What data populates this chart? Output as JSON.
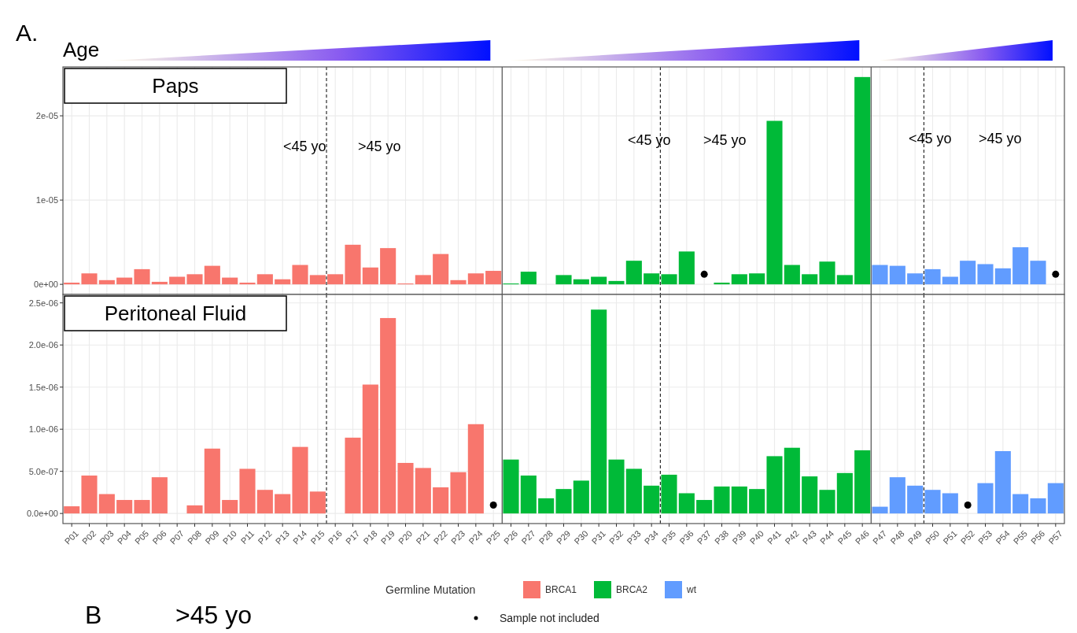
{
  "chart_data": [
    {
      "type": "bar",
      "title": "Paps",
      "annotations": [
        "A.",
        "Age",
        "<45 yo",
        ">45 yo",
        "<45 yo",
        ">45 yo",
        "<45 yo",
        ">45 yo"
      ],
      "categories": [
        "P01",
        "P02",
        "P03",
        "P04",
        "P05",
        "P06",
        "P07",
        "P08",
        "P09",
        "P10",
        "P11",
        "P12",
        "P13",
        "P14",
        "P15",
        "P16",
        "P17",
        "P18",
        "P19",
        "P20",
        "P21",
        "P22",
        "P23",
        "P24",
        "P25",
        "P26",
        "P27",
        "P28",
        "P29",
        "P30",
        "P31",
        "P32",
        "P33",
        "P34",
        "P35",
        "P36",
        "P37",
        "P38",
        "P39",
        "P40",
        "P41",
        "P42",
        "P43",
        "P44",
        "P45",
        "P46",
        "P47",
        "P48",
        "P49",
        "P50",
        "P51",
        "P52",
        "P53",
        "P54",
        "P55",
        "P56",
        "P57"
      ],
      "series": [
        {
          "color": "#f8766d",
          "values": [
            2e-07,
            1.3e-06,
            5e-07,
            8e-07,
            1.8e-06,
            3e-07,
            9e-07,
            1.2e-06,
            2.2e-06,
            8e-07,
            2e-07,
            1.2e-06,
            6e-07,
            2.3e-06,
            1.1e-06,
            1.2e-06,
            4.7e-06,
            2e-06,
            4.3e-06,
            1e-07,
            1.1e-06,
            3.6e-06,
            5e-07,
            1.3e-06,
            1.6e-06,
            null,
            null,
            null,
            null,
            null,
            null,
            null,
            null,
            null,
            null,
            null,
            null,
            null,
            null,
            null,
            null,
            null,
            null,
            null,
            null,
            null,
            null,
            null,
            null,
            null,
            null,
            null,
            null,
            null,
            null,
            null,
            null
          ]
        },
        {
          "color": "#00ba38",
          "values": [
            null,
            null,
            null,
            null,
            null,
            null,
            null,
            null,
            null,
            null,
            null,
            null,
            null,
            null,
            null,
            null,
            null,
            null,
            null,
            null,
            null,
            null,
            null,
            null,
            null,
            1e-07,
            1.5e-06,
            null,
            1.1e-06,
            6e-07,
            9e-07,
            4e-07,
            2.8e-06,
            1.3e-06,
            1.2e-06,
            3.9e-06,
            null,
            2e-07,
            1.2e-06,
            1.3e-06,
            1.94e-05,
            2.3e-06,
            1.2e-06,
            2.7e-06,
            1.1e-06,
            2.46e-05,
            null,
            null,
            null,
            null,
            null,
            null,
            null,
            null,
            null,
            null,
            null
          ]
        },
        {
          "color": "#619cff",
          "values": [
            null,
            null,
            null,
            null,
            null,
            null,
            null,
            null,
            null,
            null,
            null,
            null,
            null,
            null,
            null,
            null,
            null,
            null,
            null,
            null,
            null,
            null,
            null,
            null,
            null,
            null,
            null,
            null,
            null,
            null,
            null,
            null,
            null,
            null,
            null,
            null,
            null,
            null,
            null,
            null,
            null,
            null,
            null,
            null,
            null,
            null,
            2.3e-06,
            2.2e-06,
            1.3e-06,
            1.8e-06,
            9e-07,
            2.8e-06,
            2.4e-06,
            1.9e-06,
            4.4e-06,
            2.8e-06,
            null
          ]
        },
        {
          "type": "scatter",
          "marker": "circle",
          "color": "#000000",
          "x": [
            "P37",
            "P57"
          ],
          "values": [
            1.2e-06,
            1.2e-06
          ]
        }
      ],
      "ylim": [
        -1.2e-06,
        2.58e-05
      ],
      "yticks": [
        {
          "value": 0,
          "label": "0e+00"
        },
        {
          "value": 1e-05,
          "label": "1e-05"
        },
        {
          "value": 2e-05,
          "label": "2e-05"
        }
      ],
      "grid": true,
      "tick_labels": "y"
    },
    {
      "type": "bar",
      "title": "Peritoneal Fluid",
      "annotations": [
        "B",
        ">45 yo"
      ],
      "categories": [
        "P01",
        "P02",
        "P03",
        "P04",
        "P05",
        "P06",
        "P07",
        "P08",
        "P09",
        "P10",
        "P11",
        "P12",
        "P13",
        "P14",
        "P15",
        "P16",
        "P17",
        "P18",
        "P19",
        "P20",
        "P21",
        "P22",
        "P23",
        "P24",
        "P25",
        "P26",
        "P27",
        "P28",
        "P29",
        "P30",
        "P31",
        "P32",
        "P33",
        "P34",
        "P35",
        "P36",
        "P37",
        "P38",
        "P39",
        "P40",
        "P41",
        "P42",
        "P43",
        "P44",
        "P45",
        "P46",
        "P47",
        "P48",
        "P49",
        "P50",
        "P51",
        "P52",
        "P53",
        "P54",
        "P55",
        "P56",
        "P57"
      ],
      "series": [
        {
          "name": "BRCA1",
          "color": "#f8766d",
          "values": [
            8.5e-08,
            4.5e-07,
            2.3e-07,
            1.6e-07,
            1.6e-07,
            4.3e-07,
            null,
            9.6e-08,
            7.7e-07,
            1.6e-07,
            5.3e-07,
            2.8e-07,
            2.3e-07,
            7.9e-07,
            2.6e-07,
            null,
            9e-07,
            1.53e-06,
            2.32e-06,
            6e-07,
            5.4e-07,
            3.1e-07,
            4.9e-07,
            1.06e-06,
            null,
            null,
            null,
            null,
            null,
            null,
            null,
            null,
            null,
            null,
            null,
            null,
            null,
            null,
            null,
            null,
            null,
            null,
            null,
            null,
            null,
            null,
            null,
            null,
            null,
            null,
            null,
            null,
            null,
            null,
            null,
            null,
            null
          ]
        },
        {
          "name": "BRCA2",
          "color": "#00ba38",
          "values": [
            null,
            null,
            null,
            null,
            null,
            null,
            null,
            null,
            null,
            null,
            null,
            null,
            null,
            null,
            null,
            null,
            null,
            null,
            null,
            null,
            null,
            null,
            null,
            null,
            null,
            6.4e-07,
            4.5e-07,
            1.8e-07,
            2.9e-07,
            3.9e-07,
            2.42e-06,
            6.4e-07,
            5.3e-07,
            3.3e-07,
            4.6e-07,
            2.4e-07,
            1.6e-07,
            3.2e-07,
            3.2e-07,
            2.9e-07,
            6.8e-07,
            7.8e-07,
            4.4e-07,
            2.8e-07,
            4.8e-07,
            7.5e-07,
            null,
            null,
            null,
            null,
            null,
            null,
            null,
            null,
            null,
            null,
            null
          ]
        },
        {
          "name": "wt",
          "color": "#619cff",
          "values": [
            null,
            null,
            null,
            null,
            null,
            null,
            null,
            null,
            null,
            null,
            null,
            null,
            null,
            null,
            null,
            null,
            null,
            null,
            null,
            null,
            null,
            null,
            null,
            null,
            null,
            null,
            null,
            null,
            null,
            null,
            null,
            null,
            null,
            null,
            null,
            null,
            null,
            null,
            null,
            null,
            null,
            null,
            null,
            null,
            null,
            null,
            8e-08,
            4.3e-07,
            3.3e-07,
            2.8e-07,
            2.4e-07,
            null,
            3.6e-07,
            7.4e-07,
            2.3e-07,
            1.8e-07,
            3.6e-07
          ]
        },
        {
          "name": "Sample not included",
          "type": "scatter",
          "marker": "circle",
          "color": "#000000",
          "x": [
            "P25",
            "P52"
          ],
          "values": [
            1e-07,
            1e-07
          ]
        }
      ],
      "ylim": [
        -1.2e-07,
        2.6e-06
      ],
      "yticks": [
        {
          "value": 0,
          "label": "0.0e+00"
        },
        {
          "value": 5e-07,
          "label": "5.0e-07"
        },
        {
          "value": 1e-06,
          "label": "1.0e-06"
        },
        {
          "value": 1.5e-06,
          "label": "1.5e-06"
        },
        {
          "value": 2e-06,
          "label": "2.0e-06"
        },
        {
          "value": 2.5e-06,
          "label": "2.5e-06"
        }
      ],
      "grid": true,
      "legend": "bottom",
      "legend_title": "Germline Mutation"
    }
  ]
}
